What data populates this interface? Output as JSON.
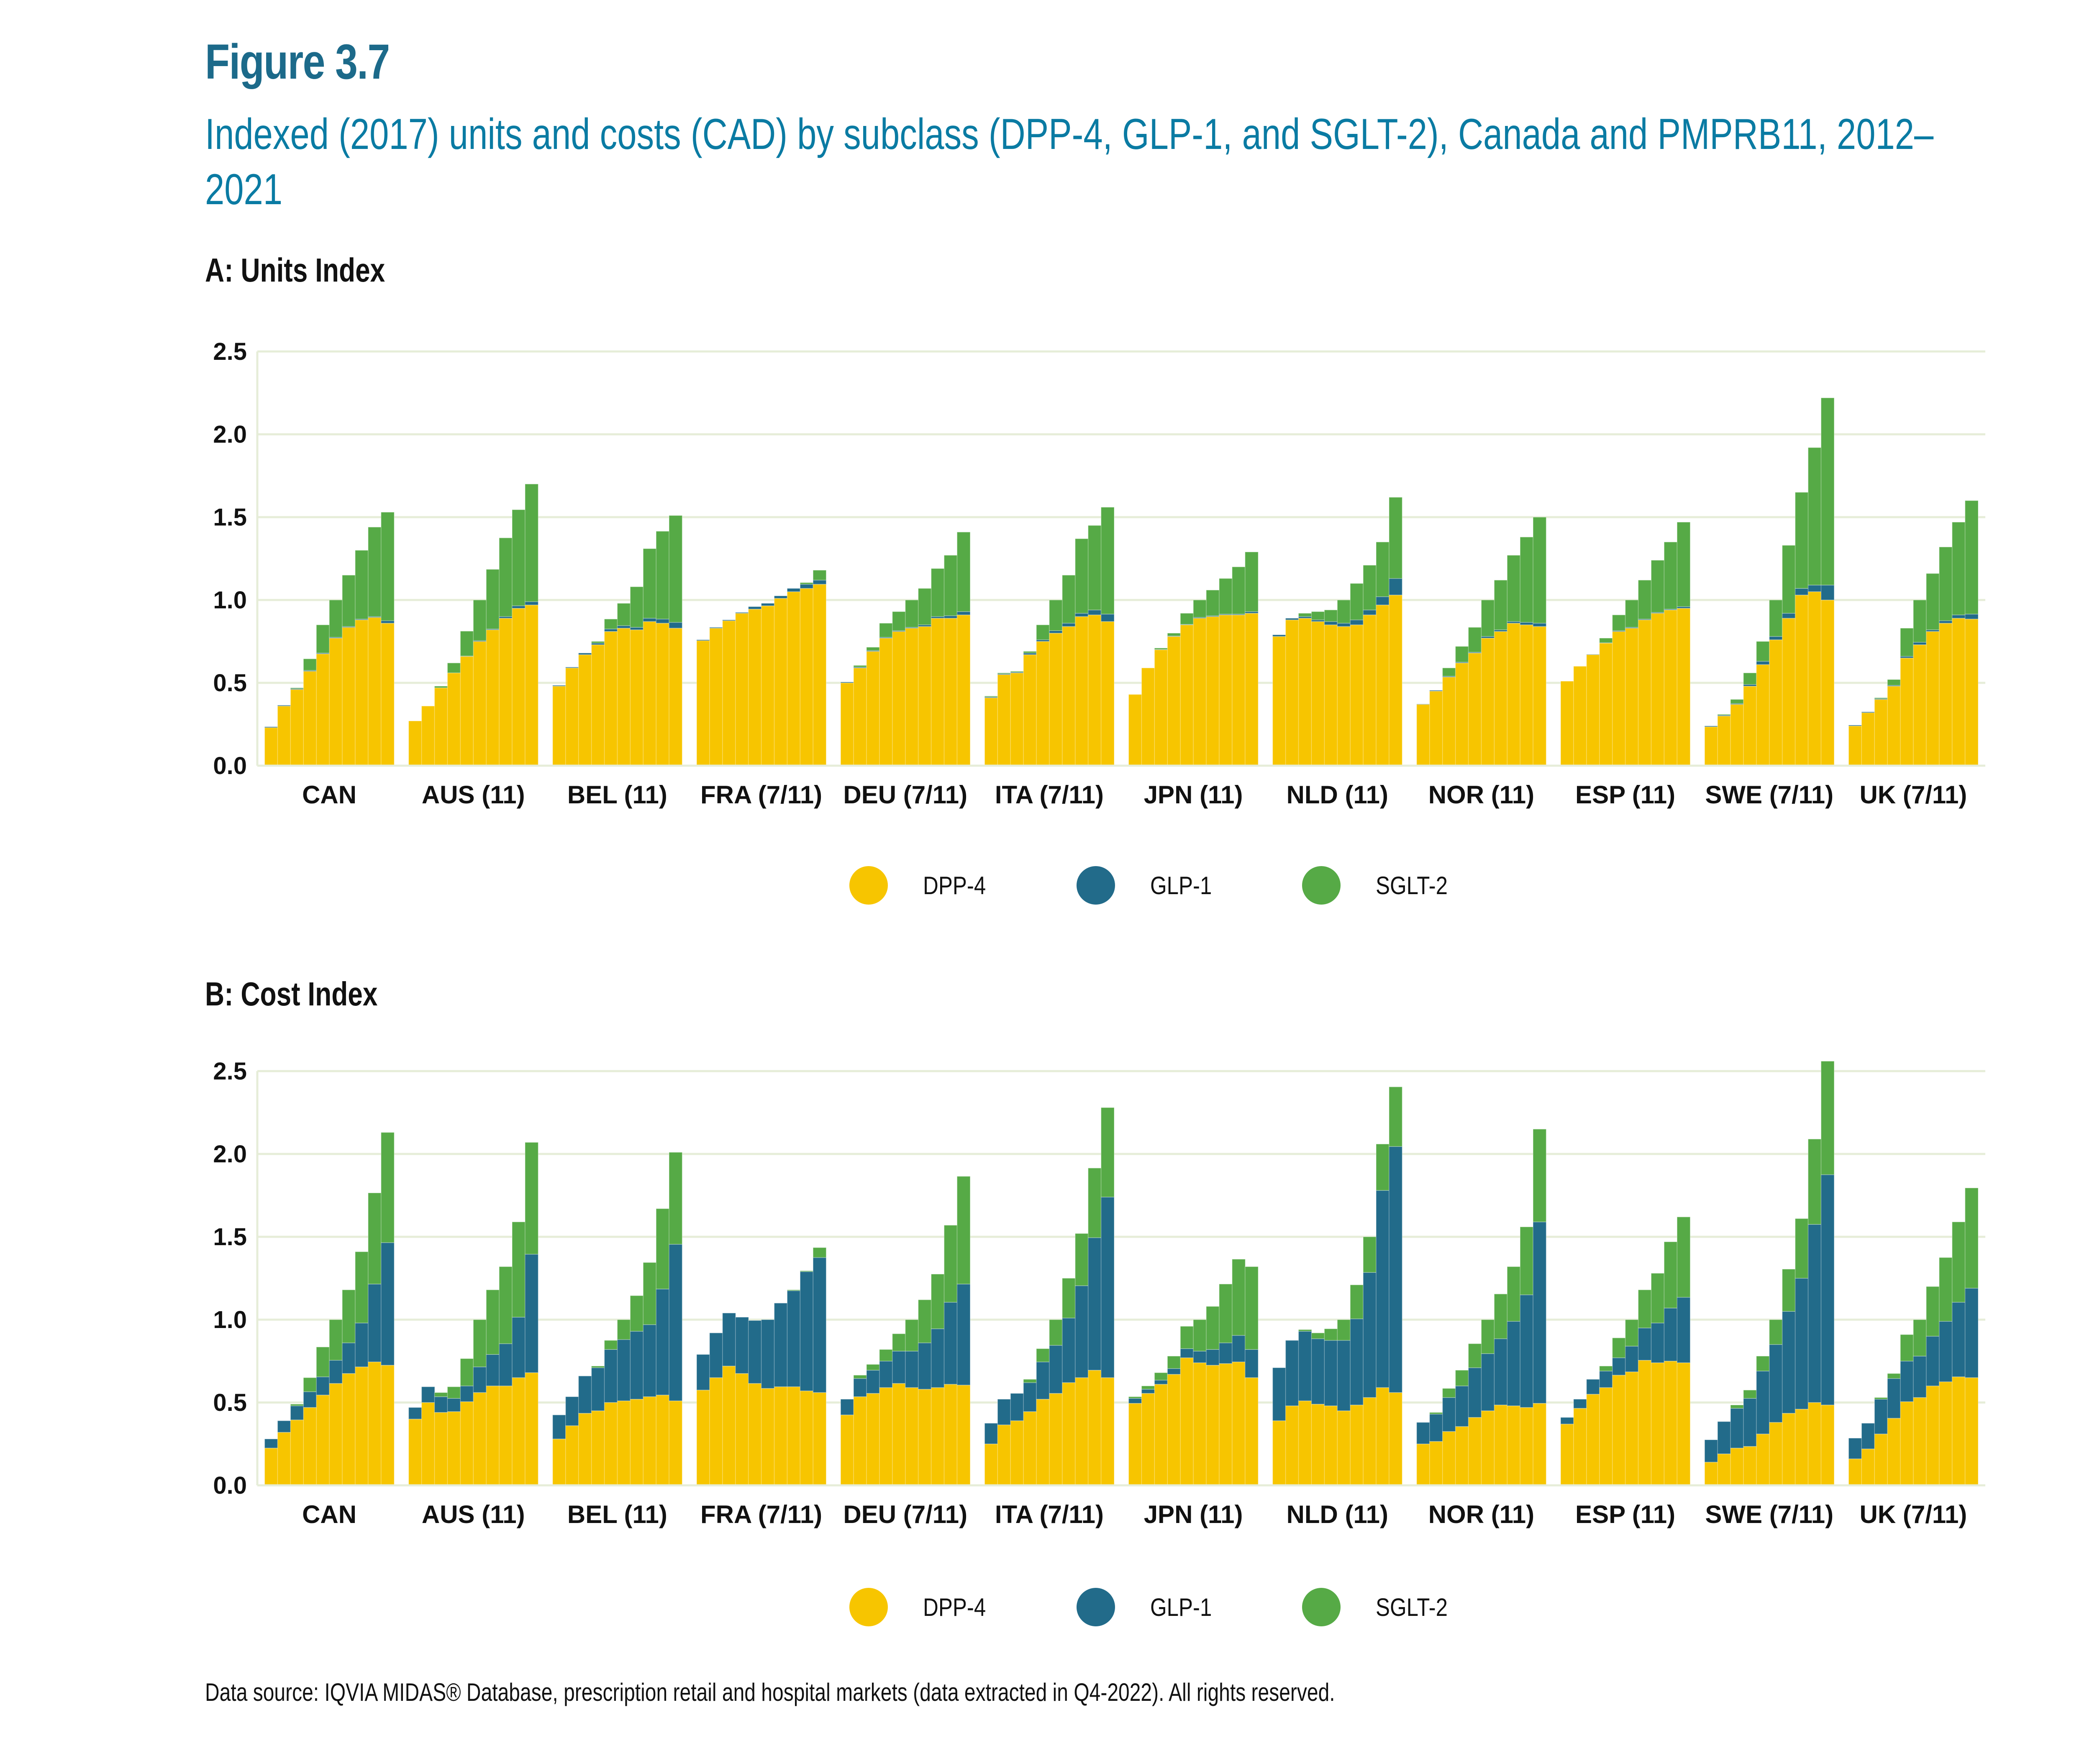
{
  "figure_number": "Figure 3.7",
  "title": "Indexed (2017) units and costs (CAD) by subclass (DPP-4, GLP-1, and SGLT-2), Canada and PMPRB11, 2012–2021",
  "source_note": "Data source: IQVIA MIDAS® Database, prescription retail and hospital markets (data extracted in Q4-2022). All rights reserved.",
  "colors": {
    "DPP-4": "#F7C500",
    "GLP-1": "#226B8A",
    "SGLT-2": "#56AA46",
    "grid": "#E6EDD8",
    "title": "#0A7BA3",
    "figure_number": "#1C6A8A"
  },
  "legend": [
    {
      "label": "DPP-4",
      "color": "#F7C500"
    },
    {
      "label": "GLP-1",
      "color": "#226B8A"
    },
    {
      "label": "SGLT-2",
      "color": "#56AA46"
    }
  ],
  "chart_data": [
    {
      "type": "bar",
      "stacked": true,
      "title": "A: Units Index",
      "xlabel": "",
      "ylabel": "",
      "ylim": [
        0,
        2.5
      ],
      "yticks": [
        "0.0",
        "0.5",
        "1.0",
        "1.5",
        "2.0",
        "2.5"
      ],
      "grid": true,
      "legend_position": "bottom-center",
      "years": [
        "2012",
        "2013",
        "2014",
        "2015",
        "2016",
        "2017",
        "2018",
        "2019",
        "2020",
        "2021"
      ],
      "categories": [
        "CAN",
        "AUS (11)",
        "BEL (11)",
        "FRA (7/11)",
        "DEU (7/11)",
        "ITA (7/11)",
        "JPN (11)",
        "NLD (11)",
        "NOR (11)",
        "ESP (11)",
        "SWE (7/11)",
        "UK (7/11)"
      ],
      "groups": [
        {
          "name": "CAN",
          "DPP-4": [
            0.23,
            0.36,
            0.46,
            0.57,
            0.675,
            0.77,
            0.835,
            0.88,
            0.895,
            0.86
          ],
          "GLP-1": [
            0.005,
            0.005,
            0.005,
            0.005,
            0.005,
            0.005,
            0.005,
            0.005,
            0.005,
            0.015
          ],
          "SGLT-2": [
            0,
            0,
            0.005,
            0.07,
            0.17,
            0.225,
            0.31,
            0.415,
            0.54,
            0.655
          ]
        },
        {
          "name": "AUS (11)",
          "DPP-4": [
            0.27,
            0.36,
            0.47,
            0.56,
            0.66,
            0.75,
            0.82,
            0.89,
            0.95,
            0.97
          ],
          "GLP-1": [
            0,
            0,
            0,
            0,
            0.002,
            0.005,
            0.005,
            0.01,
            0.015,
            0.02
          ],
          "SGLT-2": [
            0,
            0,
            0.01,
            0.06,
            0.15,
            0.245,
            0.36,
            0.475,
            0.58,
            0.71
          ]
        },
        {
          "name": "BEL (11)",
          "DPP-4": [
            0.48,
            0.59,
            0.67,
            0.73,
            0.81,
            0.83,
            0.82,
            0.87,
            0.86,
            0.83
          ],
          "GLP-1": [
            0.005,
            0.005,
            0.01,
            0.01,
            0.015,
            0.015,
            0.015,
            0.02,
            0.025,
            0.035
          ],
          "SGLT-2": [
            0,
            0,
            0,
            0.01,
            0.06,
            0.135,
            0.245,
            0.42,
            0.53,
            0.645
          ]
        },
        {
          "name": "FRA (7/11)",
          "DPP-4": [
            0.755,
            0.83,
            0.875,
            0.92,
            0.945,
            0.965,
            1.01,
            1.05,
            1.07,
            1.095
          ],
          "GLP-1": [
            0.005,
            0.005,
            0.005,
            0.005,
            0.015,
            0.015,
            0.015,
            0.02,
            0.025,
            0.025
          ],
          "SGLT-2": [
            0,
            0,
            0,
            0,
            0,
            0,
            0,
            0,
            0.01,
            0.06
          ]
        },
        {
          "name": "DEU (7/11)",
          "DPP-4": [
            0.5,
            0.59,
            0.69,
            0.77,
            0.81,
            0.83,
            0.84,
            0.89,
            0.89,
            0.91
          ],
          "GLP-1": [
            0.005,
            0.005,
            0.005,
            0.005,
            0.005,
            0.005,
            0.01,
            0.01,
            0.015,
            0.02
          ],
          "SGLT-2": [
            0,
            0.01,
            0.02,
            0.085,
            0.115,
            0.165,
            0.22,
            0.29,
            0.365,
            0.48
          ]
        },
        {
          "name": "ITA (7/11)",
          "DPP-4": [
            0.41,
            0.55,
            0.56,
            0.67,
            0.75,
            0.8,
            0.84,
            0.9,
            0.91,
            0.87
          ],
          "GLP-1": [
            0.005,
            0.005,
            0.005,
            0.01,
            0.01,
            0.015,
            0.02,
            0.02,
            0.03,
            0.045
          ],
          "SGLT-2": [
            0.005,
            0.005,
            0.005,
            0.01,
            0.09,
            0.185,
            0.29,
            0.45,
            0.51,
            0.645
          ]
        },
        {
          "name": "JPN (11)",
          "DPP-4": [
            0.43,
            0.59,
            0.7,
            0.78,
            0.85,
            0.89,
            0.9,
            0.91,
            0.91,
            0.92
          ],
          "GLP-1": [
            0,
            0,
            0.002,
            0.003,
            0.003,
            0.005,
            0.005,
            0.005,
            0.005,
            0.01
          ],
          "SGLT-2": [
            0,
            0,
            0.008,
            0.017,
            0.067,
            0.105,
            0.155,
            0.215,
            0.285,
            0.36
          ]
        },
        {
          "name": "NLD (11)",
          "DPP-4": [
            0.78,
            0.88,
            0.89,
            0.87,
            0.85,
            0.84,
            0.85,
            0.91,
            0.97,
            1.03
          ],
          "GLP-1": [
            0.01,
            0.01,
            0.01,
            0.01,
            0.02,
            0.02,
            0.03,
            0.03,
            0.05,
            0.1
          ],
          "SGLT-2": [
            0,
            0,
            0.02,
            0.05,
            0.07,
            0.14,
            0.22,
            0.27,
            0.33,
            0.49
          ]
        },
        {
          "name": "NOR (11)",
          "DPP-4": [
            0.37,
            0.45,
            0.535,
            0.62,
            0.68,
            0.77,
            0.81,
            0.86,
            0.85,
            0.84
          ],
          "GLP-1": [
            0.002,
            0.005,
            0.005,
            0.005,
            0.005,
            0.01,
            0.01,
            0.01,
            0.015,
            0.02
          ],
          "SGLT-2": [
            0,
            0,
            0.05,
            0.095,
            0.15,
            0.22,
            0.3,
            0.4,
            0.515,
            0.64
          ]
        },
        {
          "name": "ESP (11)",
          "DPP-4": [
            0.51,
            0.6,
            0.67,
            0.74,
            0.81,
            0.83,
            0.88,
            0.92,
            0.94,
            0.95
          ],
          "GLP-1": [
            0,
            0,
            0.002,
            0.002,
            0.005,
            0.005,
            0.005,
            0.005,
            0.005,
            0.01
          ],
          "SGLT-2": [
            0,
            0,
            0,
            0.028,
            0.095,
            0.165,
            0.235,
            0.315,
            0.405,
            0.51
          ]
        },
        {
          "name": "SWE (7/11)",
          "DPP-4": [
            0.235,
            0.3,
            0.37,
            0.48,
            0.61,
            0.76,
            0.89,
            1.03,
            1.05,
            1.0
          ],
          "GLP-1": [
            0.005,
            0.005,
            0.005,
            0.01,
            0.02,
            0.02,
            0.03,
            0.04,
            0.04,
            0.09
          ],
          "SGLT-2": [
            0,
            0.005,
            0.025,
            0.07,
            0.12,
            0.22,
            0.41,
            0.58,
            0.83,
            1.13
          ]
        },
        {
          "name": "UK (7/11)",
          "DPP-4": [
            0.24,
            0.32,
            0.4,
            0.48,
            0.65,
            0.73,
            0.81,
            0.86,
            0.89,
            0.885
          ],
          "GLP-1": [
            0.005,
            0.005,
            0.005,
            0.005,
            0.01,
            0.015,
            0.01,
            0.015,
            0.02,
            0.03
          ],
          "SGLT-2": [
            0,
            0,
            0.005,
            0.035,
            0.17,
            0.255,
            0.34,
            0.445,
            0.56,
            0.685
          ]
        }
      ]
    },
    {
      "type": "bar",
      "stacked": true,
      "title": "B: Cost Index",
      "xlabel": "",
      "ylabel": "",
      "ylim": [
        0,
        2.5
      ],
      "yticks": [
        "0.0",
        "0.5",
        "1.0",
        "1.5",
        "2.0",
        "2.5"
      ],
      "grid": true,
      "legend_position": "bottom-center",
      "years": [
        "2012",
        "2013",
        "2014",
        "2015",
        "2016",
        "2017",
        "2018",
        "2019",
        "2020",
        "2021"
      ],
      "categories": [
        "CAN",
        "AUS (11)",
        "BEL (11)",
        "FRA (7/11)",
        "DEU (7/11)",
        "ITA (7/11)",
        "JPN (11)",
        "NLD (11)",
        "NOR (11)",
        "ESP (11)",
        "SWE (7/11)",
        "UK (7/11)"
      ],
      "groups": [
        {
          "name": "CAN",
          "DPP-4": [
            0.225,
            0.32,
            0.395,
            0.47,
            0.545,
            0.615,
            0.675,
            0.715,
            0.745,
            0.725
          ],
          "GLP-1": [
            0.055,
            0.07,
            0.085,
            0.095,
            0.11,
            0.14,
            0.185,
            0.265,
            0.47,
            0.74
          ],
          "SGLT-2": [
            0,
            0,
            0.01,
            0.085,
            0.18,
            0.245,
            0.32,
            0.43,
            0.55,
            0.665
          ]
        },
        {
          "name": "AUS (11)",
          "DPP-4": [
            0.4,
            0.5,
            0.44,
            0.445,
            0.505,
            0.56,
            0.6,
            0.6,
            0.65,
            0.68
          ],
          "GLP-1": [
            0.07,
            0.095,
            0.095,
            0.08,
            0.095,
            0.155,
            0.19,
            0.255,
            0.365,
            0.715
          ],
          "SGLT-2": [
            0,
            0,
            0.025,
            0.07,
            0.165,
            0.285,
            0.39,
            0.465,
            0.575,
            0.675
          ]
        },
        {
          "name": "BEL (11)",
          "DPP-4": [
            0.28,
            0.36,
            0.435,
            0.45,
            0.5,
            0.51,
            0.52,
            0.535,
            0.545,
            0.51
          ],
          "GLP-1": [
            0.145,
            0.175,
            0.225,
            0.26,
            0.32,
            0.37,
            0.41,
            0.435,
            0.64,
            0.945
          ],
          "SGLT-2": [
            0,
            0,
            0,
            0.01,
            0.055,
            0.12,
            0.215,
            0.375,
            0.485,
            0.555
          ]
        },
        {
          "name": "FRA (7/11)",
          "DPP-4": [
            0.575,
            0.65,
            0.72,
            0.675,
            0.615,
            0.585,
            0.595,
            0.595,
            0.57,
            0.56
          ],
          "GLP-1": [
            0.215,
            0.27,
            0.32,
            0.34,
            0.38,
            0.415,
            0.505,
            0.58,
            0.72,
            0.815
          ],
          "SGLT-2": [
            0,
            0,
            0,
            0,
            0,
            0,
            0,
            0.005,
            0.005,
            0.06
          ]
        },
        {
          "name": "DEU (7/11)",
          "DPP-4": [
            0.425,
            0.535,
            0.555,
            0.59,
            0.615,
            0.59,
            0.58,
            0.59,
            0.61,
            0.605
          ],
          "GLP-1": [
            0.095,
            0.11,
            0.14,
            0.16,
            0.195,
            0.22,
            0.28,
            0.355,
            0.495,
            0.61
          ],
          "SGLT-2": [
            0,
            0.02,
            0.035,
            0.07,
            0.105,
            0.19,
            0.26,
            0.33,
            0.465,
            0.65
          ]
        },
        {
          "name": "ITA (7/11)",
          "DPP-4": [
            0.25,
            0.365,
            0.39,
            0.445,
            0.52,
            0.555,
            0.62,
            0.65,
            0.695,
            0.65
          ],
          "GLP-1": [
            0.125,
            0.155,
            0.165,
            0.175,
            0.225,
            0.29,
            0.39,
            0.555,
            0.8,
            1.09
          ],
          "SGLT-2": [
            0,
            0,
            0,
            0.02,
            0.08,
            0.155,
            0.24,
            0.315,
            0.42,
            0.54
          ]
        },
        {
          "name": "JPN (11)",
          "DPP-4": [
            0.495,
            0.555,
            0.61,
            0.67,
            0.77,
            0.74,
            0.725,
            0.735,
            0.745,
            0.65
          ],
          "GLP-1": [
            0.03,
            0.025,
            0.025,
            0.035,
            0.055,
            0.07,
            0.095,
            0.125,
            0.16,
            0.17
          ],
          "SGLT-2": [
            0.01,
            0.02,
            0.045,
            0.075,
            0.135,
            0.19,
            0.26,
            0.355,
            0.46,
            0.5
          ]
        },
        {
          "name": "NLD (11)",
          "DPP-4": [
            0.39,
            0.48,
            0.51,
            0.49,
            0.48,
            0.45,
            0.485,
            0.53,
            0.59,
            0.56
          ],
          "GLP-1": [
            0.32,
            0.395,
            0.42,
            0.395,
            0.395,
            0.425,
            0.52,
            0.755,
            1.19,
            1.485
          ],
          "SGLT-2": [
            0,
            0,
            0.01,
            0.035,
            0.07,
            0.125,
            0.205,
            0.215,
            0.28,
            0.36
          ]
        },
        {
          "name": "NOR (11)",
          "DPP-4": [
            0.25,
            0.265,
            0.325,
            0.355,
            0.41,
            0.45,
            0.485,
            0.48,
            0.47,
            0.495
          ],
          "GLP-1": [
            0.13,
            0.165,
            0.205,
            0.245,
            0.3,
            0.345,
            0.4,
            0.51,
            0.68,
            1.095
          ],
          "SGLT-2": [
            0,
            0.01,
            0.055,
            0.095,
            0.145,
            0.205,
            0.27,
            0.33,
            0.41,
            0.56
          ]
        },
        {
          "name": "ESP (11)",
          "DPP-4": [
            0.37,
            0.465,
            0.55,
            0.59,
            0.665,
            0.685,
            0.755,
            0.74,
            0.75,
            0.74
          ],
          "GLP-1": [
            0.04,
            0.055,
            0.09,
            0.1,
            0.105,
            0.155,
            0.195,
            0.24,
            0.32,
            0.395
          ],
          "SGLT-2": [
            0,
            0,
            0,
            0.03,
            0.12,
            0.16,
            0.23,
            0.3,
            0.4,
            0.485
          ]
        },
        {
          "name": "SWE (7/11)",
          "DPP-4": [
            0.14,
            0.19,
            0.225,
            0.235,
            0.31,
            0.38,
            0.435,
            0.46,
            0.5,
            0.485
          ],
          "GLP-1": [
            0.135,
            0.195,
            0.24,
            0.29,
            0.38,
            0.47,
            0.615,
            0.79,
            1.075,
            1.39
          ],
          "SGLT-2": [
            0,
            0,
            0.02,
            0.05,
            0.09,
            0.15,
            0.255,
            0.36,
            0.515,
            0.685
          ]
        },
        {
          "name": "UK (7/11)",
          "DPP-4": [
            0.16,
            0.22,
            0.31,
            0.405,
            0.505,
            0.53,
            0.6,
            0.625,
            0.655,
            0.65
          ],
          "GLP-1": [
            0.125,
            0.155,
            0.21,
            0.24,
            0.245,
            0.25,
            0.3,
            0.365,
            0.45,
            0.54
          ],
          "SGLT-2": [
            0,
            0,
            0.01,
            0.03,
            0.16,
            0.22,
            0.3,
            0.385,
            0.485,
            0.605
          ]
        }
      ]
    }
  ]
}
